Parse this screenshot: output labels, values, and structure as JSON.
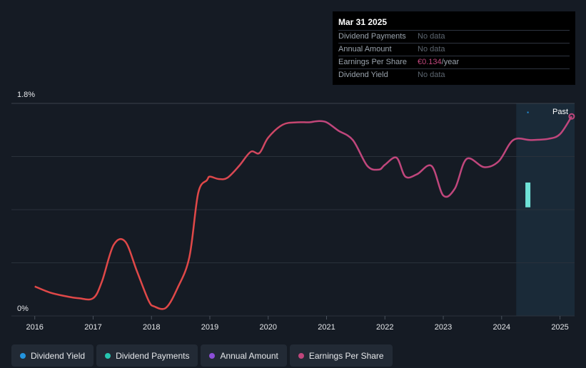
{
  "tooltip": {
    "date": "Mar 31 2025",
    "rows": [
      {
        "label": "Dividend Payments",
        "value": "No data"
      },
      {
        "label": "Annual Amount",
        "value": "No data"
      },
      {
        "label": "Earnings Per Share",
        "value": "€0.134",
        "suffix": "/year"
      },
      {
        "label": "Dividend Yield",
        "value": "No data"
      }
    ]
  },
  "past_label": "Past",
  "legend": [
    {
      "label": "Dividend Yield",
      "color": "#2394df"
    },
    {
      "label": "Dividend Payments",
      "color": "#26c6b0"
    },
    {
      "label": "Annual Amount",
      "color": "#8c4fd8"
    },
    {
      "label": "Earnings Per Share",
      "color": "#c0467c"
    }
  ],
  "colors": {
    "eps_line": "#c0467c",
    "eps_line_early": "#e04848",
    "dividend_payments": "#6fe2d8",
    "dividend_yield": "#2394df",
    "grid": "#2a313b",
    "axis_text": "#e6e8eb",
    "forecast_shade": "#1a2a38"
  },
  "chart_data": {
    "type": "line",
    "ylim": [
      0,
      1.8
    ],
    "y_tick_labels": [
      "0%",
      "1.8%"
    ],
    "x_ticks": [
      2016,
      2017,
      2018,
      2019,
      2020,
      2021,
      2022,
      2023,
      2024,
      2025
    ],
    "past_start": 2024.25,
    "series": [
      {
        "name": "Earnings Per Share",
        "x": [
          2016.0,
          2016.25,
          2016.5,
          2016.75,
          2017.0,
          2017.15,
          2017.35,
          2017.55,
          2017.75,
          2017.95,
          2018.05,
          2018.25,
          2018.45,
          2018.65,
          2018.8,
          2018.95,
          2019.0,
          2019.15,
          2019.3,
          2019.5,
          2019.7,
          2019.85,
          2020.0,
          2020.25,
          2020.5,
          2020.7,
          2020.85,
          2021.0,
          2021.2,
          2021.45,
          2021.7,
          2021.9,
          2022.0,
          2022.2,
          2022.35,
          2022.55,
          2022.8,
          2023.0,
          2023.2,
          2023.4,
          2023.7,
          2023.95,
          2024.2,
          2024.5,
          2024.8,
          2025.0,
          2025.2
        ],
        "y": [
          0.25,
          0.2,
          0.17,
          0.15,
          0.15,
          0.29,
          0.6,
          0.63,
          0.38,
          0.13,
          0.08,
          0.07,
          0.24,
          0.5,
          1.04,
          1.15,
          1.18,
          1.16,
          1.17,
          1.27,
          1.39,
          1.38,
          1.51,
          1.62,
          1.64,
          1.64,
          1.65,
          1.64,
          1.57,
          1.49,
          1.27,
          1.24,
          1.28,
          1.34,
          1.18,
          1.2,
          1.27,
          1.02,
          1.08,
          1.33,
          1.26,
          1.31,
          1.49,
          1.49,
          1.5,
          1.54,
          1.69
        ]
      },
      {
        "name": "Dividend Payments",
        "x": [
          2024.45,
          2024.45
        ],
        "y": [
          1.13,
          0.92
        ]
      }
    ]
  }
}
